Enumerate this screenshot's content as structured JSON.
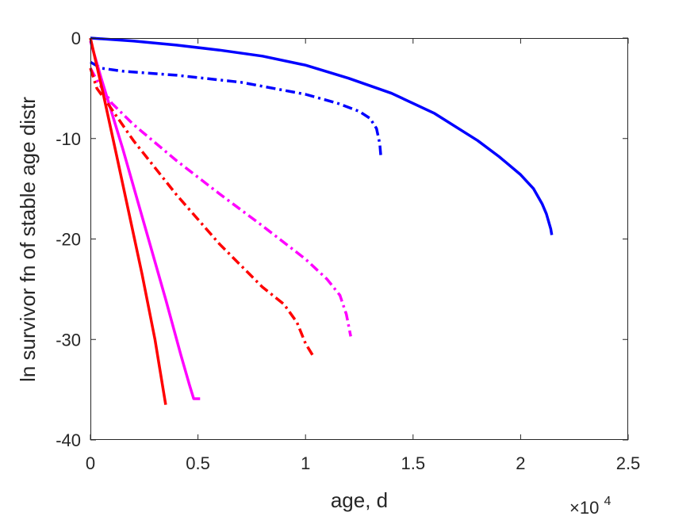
{
  "chart_data": {
    "type": "line",
    "title": "",
    "xlabel": "age, d",
    "ylabel": "ln survivor fn of stable age distr",
    "x_exponent_label": "×10",
    "x_exponent_power": "4",
    "xlim": [
      0,
      25000
    ],
    "ylim": [
      -40,
      0
    ],
    "xticks": [
      0,
      5000,
      10000,
      15000,
      20000,
      25000
    ],
    "xtick_labels": [
      "0",
      "0.5",
      "1",
      "1.5",
      "2",
      "2.5"
    ],
    "yticks": [
      0,
      -10,
      -20,
      -30,
      -40
    ],
    "ytick_labels": [
      "0",
      "-10",
      "-20",
      "-30",
      "-40"
    ],
    "grid": false,
    "legend": "none",
    "series": [
      {
        "color": "#0000ff",
        "style": "solid",
        "points": [
          [
            0,
            0
          ],
          [
            2000,
            -0.3
          ],
          [
            4000,
            -0.7
          ],
          [
            6000,
            -1.2
          ],
          [
            8000,
            -1.8
          ],
          [
            10000,
            -2.7
          ],
          [
            12000,
            -4.0
          ],
          [
            14000,
            -5.5
          ],
          [
            16000,
            -7.5
          ],
          [
            18000,
            -10.2
          ],
          [
            19000,
            -11.8
          ],
          [
            20000,
            -13.6
          ],
          [
            20600,
            -15.0
          ],
          [
            21000,
            -16.5
          ],
          [
            21200,
            -17.5
          ],
          [
            21400,
            -19.0
          ],
          [
            21450,
            -19.6
          ]
        ]
      },
      {
        "color": "#0000ff",
        "style": "dashdot",
        "points": [
          [
            0,
            -2.4
          ],
          [
            500,
            -3.0
          ],
          [
            1500,
            -3.3
          ],
          [
            4000,
            -3.7
          ],
          [
            7000,
            -4.4
          ],
          [
            10000,
            -5.6
          ],
          [
            11500,
            -6.5
          ],
          [
            12500,
            -7.3
          ],
          [
            13000,
            -8.0
          ],
          [
            13300,
            -9.0
          ],
          [
            13450,
            -10.5
          ],
          [
            13500,
            -11.7
          ]
        ]
      },
      {
        "color": "#ff00ff",
        "style": "solid",
        "points": [
          [
            0,
            -0.3
          ],
          [
            500,
            -4.0
          ],
          [
            1500,
            -11.0
          ],
          [
            2500,
            -18.5
          ],
          [
            3500,
            -26.0
          ],
          [
            4200,
            -31.5
          ],
          [
            4600,
            -34.5
          ],
          [
            4800,
            -35.9
          ],
          [
            5100,
            -35.9
          ]
        ]
      },
      {
        "color": "#ff00ff",
        "style": "dashdot",
        "points": [
          [
            0,
            -3.0
          ],
          [
            300,
            -4.2
          ],
          [
            1000,
            -6.5
          ],
          [
            2000,
            -8.6
          ],
          [
            4000,
            -12.2
          ],
          [
            6000,
            -15.5
          ],
          [
            8000,
            -18.7
          ],
          [
            10000,
            -22.0
          ],
          [
            11000,
            -24.0
          ],
          [
            11600,
            -25.6
          ],
          [
            11900,
            -27.5
          ],
          [
            12100,
            -29.7
          ]
        ]
      },
      {
        "color": "#ff0000",
        "style": "solid",
        "points": [
          [
            0,
            0
          ],
          [
            600,
            -5.6
          ],
          [
            1200,
            -11.5
          ],
          [
            1800,
            -17.5
          ],
          [
            2400,
            -23.5
          ],
          [
            3000,
            -30.0
          ],
          [
            3500,
            -36.5
          ]
        ]
      },
      {
        "color": "#ff0000",
        "style": "dashdot",
        "points": [
          [
            0,
            -3.0
          ],
          [
            300,
            -5.0
          ],
          [
            800,
            -6.5
          ],
          [
            2000,
            -10.2
          ],
          [
            4000,
            -15.6
          ],
          [
            6000,
            -20.5
          ],
          [
            8000,
            -24.8
          ],
          [
            9000,
            -26.5
          ],
          [
            9600,
            -28.3
          ],
          [
            10000,
            -30.4
          ],
          [
            10400,
            -31.8
          ]
        ]
      }
    ]
  }
}
